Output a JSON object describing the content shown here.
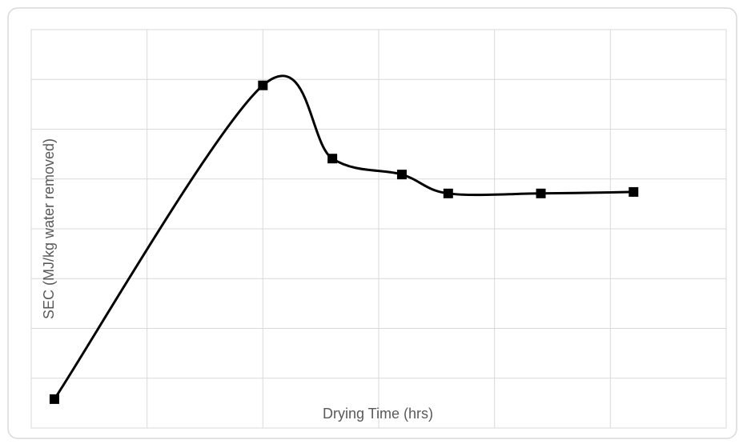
{
  "chart_data": {
    "type": "line",
    "x_label": "Drying Time (hrs)",
    "y_label": "SEC (MJ/kg water removed)",
    "x": [
      0.2,
      2.0,
      2.6,
      3.2,
      3.6,
      4.4,
      5.2
    ],
    "series": [
      {
        "color": "#000000",
        "values": [
          0.58,
          6.88,
          5.41,
          5.09,
          4.71,
          4.71,
          4.74
        ]
      }
    ],
    "xlim": [
      0,
      6
    ],
    "xticks": [
      0,
      1,
      2,
      3,
      4,
      5,
      6
    ],
    "ylim": [
      0,
      8
    ],
    "yticks": [
      0,
      1,
      2,
      3,
      4,
      5,
      6,
      7,
      8
    ],
    "grid": true,
    "smooth": true
  }
}
